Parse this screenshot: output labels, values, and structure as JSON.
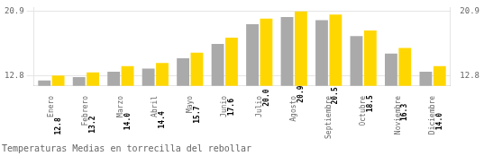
{
  "chart_data": {
    "type": "bar",
    "title": "Temperaturas Medias en torrecilla del rebollar",
    "categories": [
      "Enero",
      "Febrero",
      "Marzo",
      "Abril",
      "Mayo",
      "Junio",
      "Julio",
      "Agosto",
      "Septiembre",
      "Octubre",
      "Noviembre",
      "Diciembre"
    ],
    "series": [
      {
        "color": "#AAAAAA",
        "values": [
          12.2,
          12.6,
          13.3,
          13.7,
          15.0,
          16.8,
          19.3,
          20.2,
          19.8,
          17.8,
          15.6,
          13.3
        ]
      },
      {
        "color": "#FFD700",
        "values": [
          12.8,
          13.2,
          14.0,
          14.4,
          15.7,
          17.6,
          20.0,
          20.9,
          20.5,
          18.5,
          16.3,
          14.0
        ],
        "value_labels": [
          "12.8",
          "13.2",
          "14.0",
          "14.4",
          "15.7",
          "17.6",
          "20.0",
          "20.9",
          "20.5",
          "18.5",
          "16.3",
          "14.0"
        ],
        "data_labels": true
      }
    ],
    "ylim": [
      11.5,
      21.4
    ],
    "yticks": [
      12.8,
      20.9
    ],
    "y2lim": [
      11.5,
      21.4
    ],
    "y2ticks": [
      12.8,
      20.9
    ],
    "grid": true
  }
}
